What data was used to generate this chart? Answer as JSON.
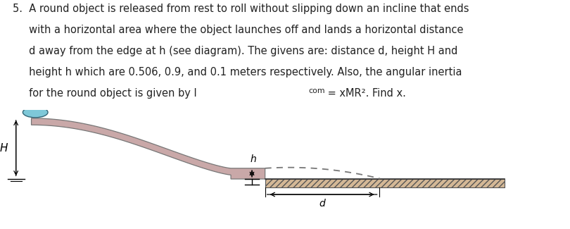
{
  "bg_color": "#ffffff",
  "ramp_fill": "#c9a8a8",
  "ramp_edge": "#777777",
  "platform_fill": "#d4b896",
  "platform_edge": "#555555",
  "ball_color": "#7ec8d8",
  "ball_edge": "#336677",
  "arrow_color": "#000000",
  "dash_color": "#777777",
  "label_H": "H",
  "label_h": "h",
  "label_d": "d",
  "text_lines": [
    "5.  A round object is released from rest to roll without slipping down an incline that ends",
    "     with a horizontal area where the object launches off and lands a horizontal distance",
    "     d away from the edge at h (see diagram). The givens are: distance d, height H and",
    "     height h which are 0.506, 0.9, and 0.1 meters respectively. Also, the angular inertia",
    "     for the round object is given by I"
  ],
  "text_com": "com",
  "text_end": " = xMR². Find x.",
  "fontsize": 10.5
}
